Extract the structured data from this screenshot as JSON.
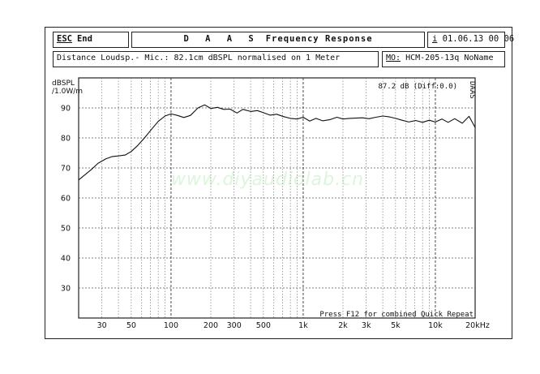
{
  "header": {
    "esc_key": "ESC",
    "esc_label": "End",
    "program": "D A A S",
    "title": "Frequency Response",
    "date_key": "i",
    "date": "01.06.13 00 06"
  },
  "info": {
    "description": "Distance Loudsp.- Mic.: 82.1cm dBSPL normalised on 1 Meter",
    "model_key": "MO:",
    "model": "HCM-205-13q NoName"
  },
  "plot": {
    "ylabel_line1": "dBSPL",
    "ylabel_line2": "/1.0W/m",
    "level_readout": "87.2 dB (Diff:0.0)",
    "vertical_tag": "DAAS",
    "watermark": "www.diyaudiolab.cn",
    "footer_note": "Press F12 for combined Quick Repeat"
  },
  "chart_data": {
    "type": "line",
    "title": "Frequency Response",
    "xlabel": "",
    "ylabel": "dBSPL /1.0W/m",
    "x_scale": "log",
    "xlim": [
      20,
      20000
    ],
    "ylim": [
      20,
      100
    ],
    "grid": true,
    "x_ticks": [
      {
        "value": 30,
        "label": "30"
      },
      {
        "value": 50,
        "label": "50"
      },
      {
        "value": 100,
        "label": "100"
      },
      {
        "value": 200,
        "label": "200"
      },
      {
        "value": 300,
        "label": "300"
      },
      {
        "value": 500,
        "label": "500"
      },
      {
        "value": 1000,
        "label": "1k"
      },
      {
        "value": 2000,
        "label": "2k"
      },
      {
        "value": 3000,
        "label": "3k"
      },
      {
        "value": 5000,
        "label": "5k"
      },
      {
        "value": 10000,
        "label": "10k"
      },
      {
        "value": 20000,
        "label": "20kHz"
      }
    ],
    "y_ticks": [
      90,
      80,
      70,
      60,
      50,
      40,
      30
    ],
    "series": [
      {
        "color": "#111111",
        "x": [
          20,
          22,
          25,
          28,
          32,
          36,
          40,
          45,
          50,
          56,
          63,
          70,
          80,
          90,
          100,
          112,
          125,
          140,
          160,
          180,
          200,
          225,
          250,
          280,
          315,
          350,
          400,
          450,
          500,
          560,
          630,
          710,
          800,
          900,
          1000,
          1120,
          1250,
          1400,
          1600,
          1800,
          2000,
          2240,
          2500,
          2800,
          3150,
          3550,
          4000,
          4500,
          5000,
          5600,
          6300,
          7100,
          8000,
          9000,
          10000,
          11200,
          12500,
          14000,
          16000,
          18000,
          20000
        ],
        "y": [
          66,
          67.5,
          69.5,
          71.5,
          73,
          73.8,
          74,
          74.3,
          75.5,
          77.5,
          80,
          82.5,
          85.5,
          87.3,
          88,
          87.5,
          86.8,
          87.5,
          90,
          91,
          89.8,
          90.2,
          89.5,
          89.6,
          88.3,
          89.5,
          88.8,
          89.1,
          88.4,
          87.6,
          87.9,
          87.1,
          86.5,
          86.3,
          86.9,
          85.6,
          86.5,
          85.7,
          86.1,
          86.9,
          86.3,
          86.5,
          86.6,
          86.7,
          86.4,
          86.9,
          87.3,
          87,
          86.5,
          85.9,
          85.3,
          85.8,
          85.2,
          85.9,
          85.3,
          86.3,
          85.2,
          86.4,
          84.9,
          87.2,
          83.5
        ]
      }
    ]
  }
}
